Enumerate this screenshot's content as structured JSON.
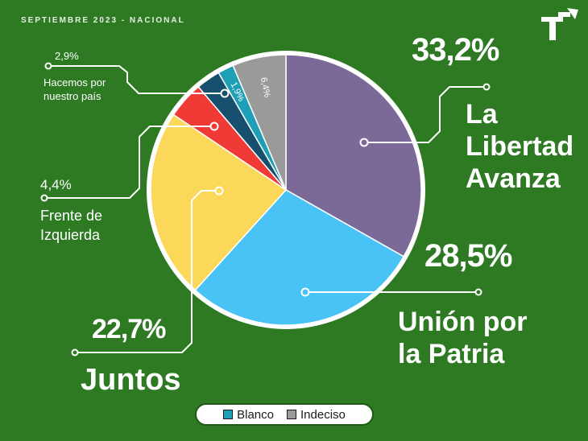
{
  "header": {
    "title": "SEPTIEMBRE 2023 - NACIONAL"
  },
  "chart_data": {
    "type": "pie",
    "title": "",
    "slices": [
      {
        "name": "La Libertad Avanza",
        "value": 33.2,
        "label": "33,2%",
        "color": "#7b6a98"
      },
      {
        "name": "Unión por la Patria",
        "value": 28.5,
        "label": "28,5%",
        "color": "#49c2f5"
      },
      {
        "name": "Juntos",
        "value": 22.7,
        "label": "22,7%",
        "color": "#fcd85a"
      },
      {
        "name": "Frente de Izquierda",
        "value": 4.4,
        "label": "4,4%",
        "color": "#f03a36"
      },
      {
        "name": "Hacemos por nuestro país",
        "value": 2.9,
        "label": "2,9%",
        "color": "#16506e"
      },
      {
        "name": "Blanco",
        "value": 1.9,
        "label": "1,9%",
        "color": "#1e9fb6"
      },
      {
        "name": "Indeciso",
        "value": 6.4,
        "label": "6,4%",
        "color": "#9a9a9a"
      }
    ],
    "labels": {
      "lla_pct": "33,2%",
      "lla_line1": "La",
      "lla_line2": "Libertad",
      "lla_line3": "Avanza",
      "uxp_pct": "28,5%",
      "uxp_line1": "Unión por",
      "uxp_line2": "la Patria",
      "juntos_pct": "22,7%",
      "juntos_name": "Juntos",
      "fit_pct": "4,4%",
      "fit_line1": "Frente de",
      "fit_line2": "Izquierda",
      "hnp_pct": "2,9%",
      "hnp_line1": "Hacemos por",
      "hnp_line2": "nuestro país",
      "blanco_pct": "1,9%",
      "indeciso_pct": "6,4%"
    },
    "legend": [
      {
        "name": "Blanco",
        "color": "#1e9fb6"
      },
      {
        "name": "Indeciso",
        "color": "#9a9a9a"
      }
    ],
    "legend_position": "bottom-center"
  }
}
